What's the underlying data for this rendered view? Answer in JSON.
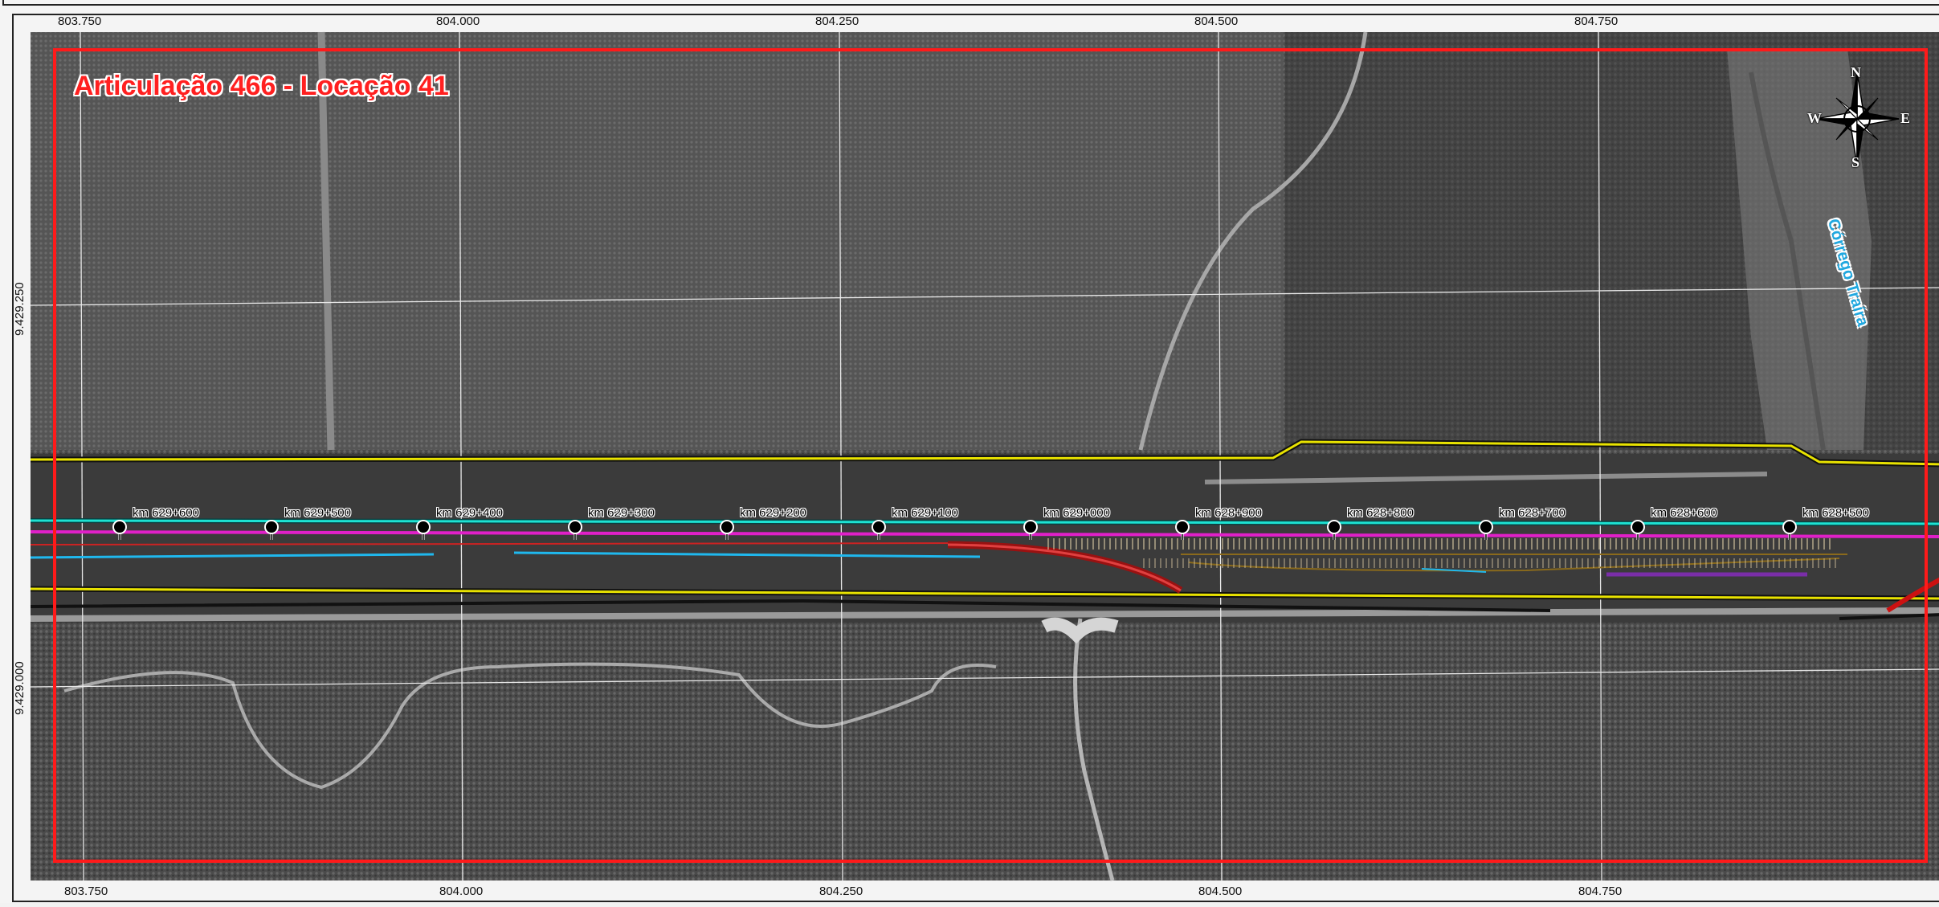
{
  "map": {
    "title": "Articulação 466 - Locação 41",
    "stream_label": "Córrego Traíra",
    "frame_color": "#ff1a1a",
    "axis_color": "#d4ff00"
  },
  "grid": {
    "x_labels": [
      "803.750",
      "804.000",
      "804.250",
      "804.500",
      "804.750"
    ],
    "y_labels": [
      "9.429.250",
      "9.429.000"
    ]
  },
  "compass": {
    "n": "N",
    "s": "S",
    "e": "E",
    "w": "W",
    "icon": "compass-rose-icon"
  },
  "km_markers": [
    {
      "label": "km 629+600"
    },
    {
      "label": "km 629+500"
    },
    {
      "label": "km 629+400"
    },
    {
      "label": "km 629+300"
    },
    {
      "label": "km 629+200"
    },
    {
      "label": "km 629+100"
    },
    {
      "label": "km 629+000"
    },
    {
      "label": "km 628+900"
    },
    {
      "label": "km 628+800"
    },
    {
      "label": "km 628+700"
    },
    {
      "label": "km 628+600"
    },
    {
      "label": "km 628+500"
    }
  ]
}
